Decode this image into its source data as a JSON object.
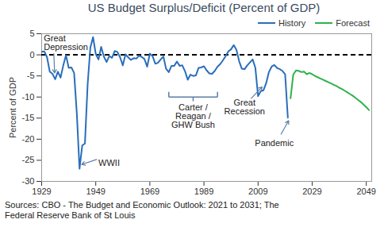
{
  "chart_data": {
    "type": "line",
    "title": "US Budget Surplus/Deficit (Percent of GDP)",
    "y_label": "Percent of GDP",
    "caption": "Sources: CBO - The Budget and Economic Outlook: 2021 to 2031; The Federal Reserve Bank of St Louis",
    "annotations": [
      "Great\nDepression",
      "WWII",
      "Carter /\nReagan /\nGHW Bush",
      "Great\nRecession",
      "Pandemic"
    ],
    "x": [
      1929,
      1930,
      1931,
      1932,
      1933,
      1934,
      1935,
      1936,
      1937,
      1938,
      1939,
      1940,
      1941,
      1942,
      1943,
      1944,
      1945,
      1946,
      1947,
      1948,
      1949,
      1950,
      1951,
      1952,
      1953,
      1954,
      1955,
      1956,
      1957,
      1958,
      1959,
      1960,
      1961,
      1962,
      1963,
      1964,
      1965,
      1966,
      1967,
      1968,
      1969,
      1970,
      1971,
      1972,
      1973,
      1974,
      1975,
      1976,
      1977,
      1978,
      1979,
      1980,
      1981,
      1982,
      1983,
      1984,
      1985,
      1986,
      1987,
      1988,
      1989,
      1990,
      1991,
      1992,
      1993,
      1994,
      1995,
      1996,
      1997,
      1998,
      1999,
      2000,
      2001,
      2002,
      2003,
      2004,
      2005,
      2006,
      2007,
      2008,
      2009,
      2010,
      2011,
      2012,
      2013,
      2014,
      2015,
      2016,
      2017,
      2018,
      2019,
      2020,
      2021,
      2022,
      2023,
      2024,
      2025,
      2026,
      2027,
      2028,
      2029,
      2030,
      2031,
      2032,
      2033,
      2034,
      2035,
      2036,
      2037,
      2038,
      2039,
      2040,
      2041,
      2042,
      2043,
      2044,
      2045,
      2046,
      2047,
      2048,
      2049,
      2050
    ],
    "series": [
      {
        "name": "History",
        "color": "#2a6ebb",
        "values": [
          0.7,
          0.8,
          -0.6,
          -4.0,
          -4.5,
          -5.8,
          -4.0,
          -5.4,
          -2.5,
          -0.1,
          -3.1,
          -3.0,
          -4.3,
          -13.9,
          -27.0,
          -21.5,
          -21.0,
          -7.0,
          1.7,
          4.2,
          0.2,
          -1.1,
          1.9,
          -0.4,
          -1.7,
          -0.3,
          -0.7,
          0.9,
          0.7,
          -0.6,
          -2.5,
          0.1,
          -0.6,
          -1.2,
          -0.8,
          -0.9,
          -0.2,
          -0.5,
          -1.0,
          -2.8,
          0.3,
          -0.3,
          -2.1,
          -1.9,
          -1.1,
          -0.4,
          -3.3,
          -4.1,
          -2.6,
          -2.6,
          -1.6,
          -2.6,
          -2.5,
          -3.9,
          -5.9,
          -4.7,
          -5.0,
          -4.9,
          -3.1,
          -3.0,
          -2.7,
          -3.7,
          -4.4,
          -4.5,
          -3.8,
          -2.8,
          -2.2,
          -1.3,
          -0.3,
          0.8,
          1.3,
          2.3,
          1.2,
          -1.5,
          -3.3,
          -3.4,
          -2.5,
          -1.8,
          -1.1,
          -3.1,
          -9.8,
          -8.6,
          -8.4,
          -6.7,
          -4.1,
          -2.8,
          -2.4,
          -3.1,
          -3.4,
          -3.8,
          -4.6,
          -14.9,
          null,
          null,
          null,
          null,
          null,
          null,
          null,
          null,
          null,
          null,
          null,
          null,
          null,
          null,
          null,
          null,
          null,
          null,
          null,
          null,
          null,
          null,
          null,
          null,
          null,
          null,
          null,
          null,
          null,
          null
        ]
      },
      {
        "name": "Forecast",
        "color": "#2fb24c",
        "values": [
          null,
          null,
          null,
          null,
          null,
          null,
          null,
          null,
          null,
          null,
          null,
          null,
          null,
          null,
          null,
          null,
          null,
          null,
          null,
          null,
          null,
          null,
          null,
          null,
          null,
          null,
          null,
          null,
          null,
          null,
          null,
          null,
          null,
          null,
          null,
          null,
          null,
          null,
          null,
          null,
          null,
          null,
          null,
          null,
          null,
          null,
          null,
          null,
          null,
          null,
          null,
          null,
          null,
          null,
          null,
          null,
          null,
          null,
          null,
          null,
          null,
          null,
          null,
          null,
          null,
          null,
          null,
          null,
          null,
          null,
          null,
          null,
          null,
          null,
          null,
          null,
          null,
          null,
          null,
          null,
          null,
          null,
          null,
          null,
          null,
          null,
          null,
          null,
          null,
          null,
          null,
          null,
          -10.3,
          -4.7,
          -3.7,
          -3.8,
          -4.1,
          -4.0,
          -4.6,
          -4.3,
          -4.6,
          -5.0,
          -5.3,
          -5.6,
          -5.9,
          -6.2,
          -6.5,
          -6.8,
          -7.1,
          -7.4,
          -7.8,
          -8.1,
          -8.5,
          -8.9,
          -9.3,
          -9.7,
          -10.2,
          -10.7,
          -11.2,
          -11.8,
          -12.4,
          -13.1
        ]
      }
    ],
    "xlim": [
      1929,
      2051
    ],
    "xticks": [
      1929,
      1949,
      1969,
      1989,
      2009,
      2029,
      2049
    ],
    "ylim": [
      -30,
      5
    ],
    "yticks": [
      -30,
      -25,
      -20,
      -15,
      -10,
      -5,
      0,
      5
    ],
    "grid": false,
    "legend": "top-right"
  }
}
